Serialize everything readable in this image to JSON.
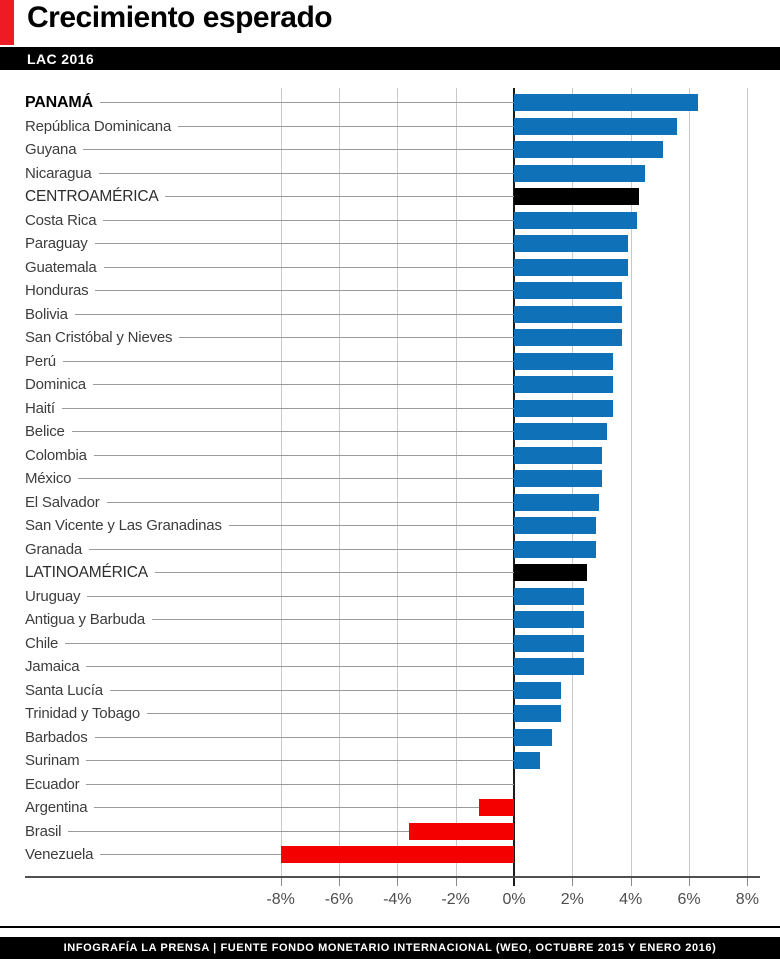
{
  "header": {
    "title": "Crecimiento esperado",
    "subtitle": "LAC 2016",
    "accent_color": "#ed1c24",
    "band_color": "#000000"
  },
  "chart_data": {
    "type": "bar",
    "orientation": "horizontal",
    "unit": "%",
    "xlim": [
      -8,
      8
    ],
    "tick_step": 2,
    "tick_labels": [
      "-8%",
      "-6%",
      "-4%",
      "-2%",
      "0%",
      "2%",
      "4%",
      "6%",
      "8%"
    ],
    "grid": true,
    "colors": {
      "positive": "#0f72b9",
      "negative": "#f40000",
      "aggregate": "#000000"
    },
    "items": [
      {
        "label": "PANAMÁ",
        "value": 6.3,
        "kind": "country",
        "bold": true
      },
      {
        "label": "República Dominicana",
        "value": 5.6,
        "kind": "country"
      },
      {
        "label": "Guyana",
        "value": 5.1,
        "kind": "country"
      },
      {
        "label": "Nicaragua",
        "value": 4.5,
        "kind": "country"
      },
      {
        "label": "CENTROAMÉRICA",
        "value": 4.3,
        "kind": "aggregate"
      },
      {
        "label": "Costa Rica",
        "value": 4.2,
        "kind": "country"
      },
      {
        "label": "Paraguay",
        "value": 3.9,
        "kind": "country"
      },
      {
        "label": "Guatemala",
        "value": 3.9,
        "kind": "country"
      },
      {
        "label": "Honduras",
        "value": 3.7,
        "kind": "country"
      },
      {
        "label": "Bolivia",
        "value": 3.7,
        "kind": "country"
      },
      {
        "label": "San Cristóbal y Nieves",
        "value": 3.7,
        "kind": "country"
      },
      {
        "label": "Perú",
        "value": 3.4,
        "kind": "country"
      },
      {
        "label": "Dominica",
        "value": 3.4,
        "kind": "country"
      },
      {
        "label": "Haití",
        "value": 3.4,
        "kind": "country"
      },
      {
        "label": "Belice",
        "value": 3.2,
        "kind": "country"
      },
      {
        "label": "Colombia",
        "value": 3.0,
        "kind": "country"
      },
      {
        "label": "México",
        "value": 3.0,
        "kind": "country"
      },
      {
        "label": "El Salvador",
        "value": 2.9,
        "kind": "country"
      },
      {
        "label": "San Vicente y Las Granadinas",
        "value": 2.8,
        "kind": "country"
      },
      {
        "label": "Granada",
        "value": 2.8,
        "kind": "country"
      },
      {
        "label": "LATINOAMÉRICA",
        "value": 2.5,
        "kind": "aggregate"
      },
      {
        "label": "Uruguay",
        "value": 2.4,
        "kind": "country"
      },
      {
        "label": "Antigua y Barbuda",
        "value": 2.4,
        "kind": "country"
      },
      {
        "label": "Chile",
        "value": 2.4,
        "kind": "country"
      },
      {
        "label": "Jamaica",
        "value": 2.4,
        "kind": "country"
      },
      {
        "label": "Santa Lucía",
        "value": 1.6,
        "kind": "country"
      },
      {
        "label": "Trinidad y Tobago",
        "value": 1.6,
        "kind": "country"
      },
      {
        "label": "Barbados",
        "value": 1.3,
        "kind": "country"
      },
      {
        "label": "Surinam",
        "value": 0.9,
        "kind": "country"
      },
      {
        "label": "Ecuador",
        "value": 0.0,
        "kind": "country"
      },
      {
        "label": "Argentina",
        "value": -1.2,
        "kind": "country"
      },
      {
        "label": "Brasil",
        "value": -3.6,
        "kind": "country"
      },
      {
        "label": "Venezuela",
        "value": -8.0,
        "kind": "country"
      }
    ]
  },
  "footer": {
    "text": "INFOGRAFÍA LA PRENSA | FUENTE FONDO MONETARIO INTERNACIONAL (WEO, OCTUBRE 2015 Y ENERO 2016)"
  }
}
